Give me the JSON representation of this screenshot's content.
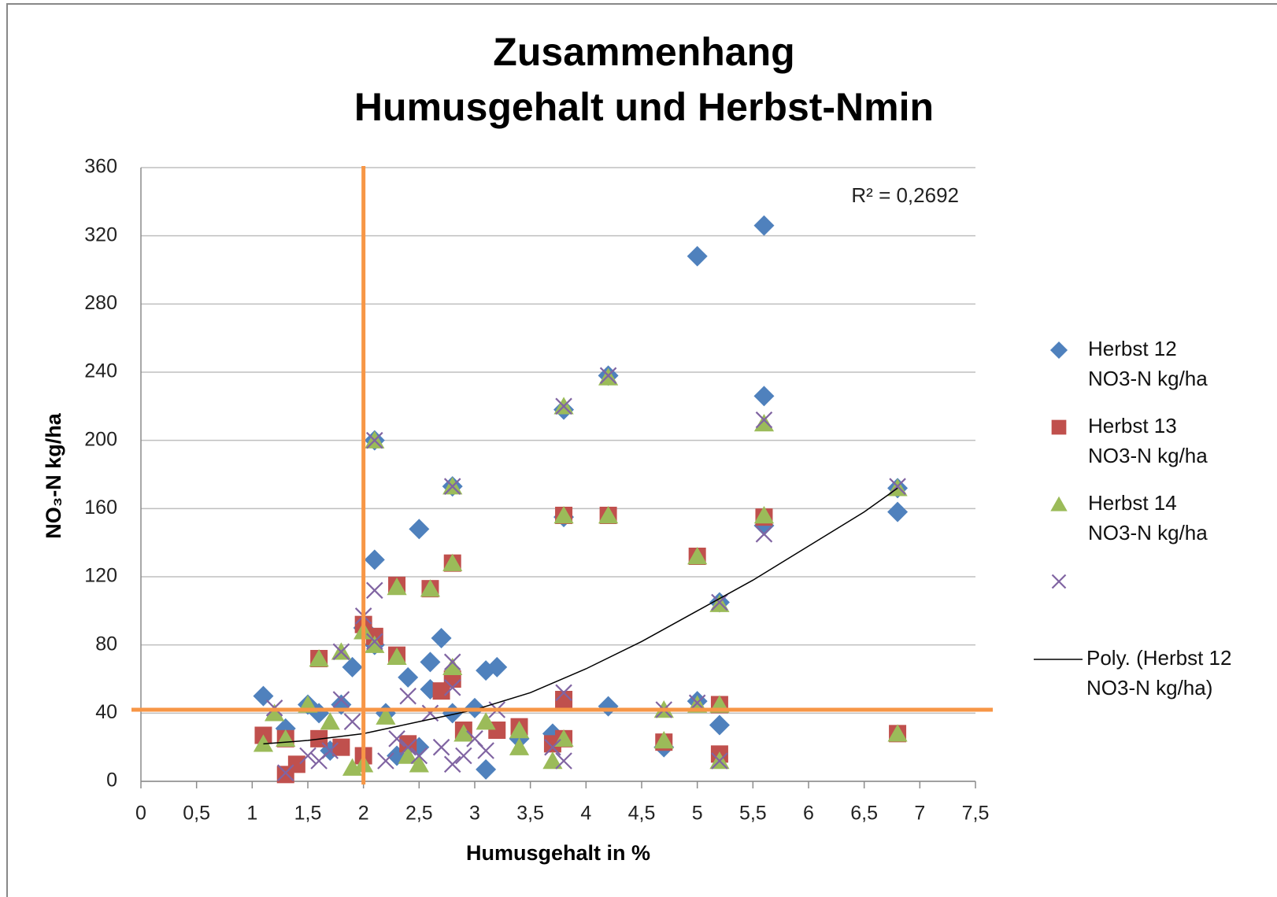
{
  "chart_data": {
    "type": "scatter",
    "title": [
      "Zusammenhang",
      "Humusgehalt und Herbst-Nmin"
    ],
    "x_label": "Humusgehalt in %",
    "y_label": "NO₃-N kg/ha",
    "annotation": "R² = 0,2692",
    "xlim": [
      0,
      7.5
    ],
    "ylim": [
      0,
      360
    ],
    "xticks": [
      0,
      {
        "value": 0.5,
        "label": "0,5"
      },
      1,
      {
        "value": 1.5,
        "label": "1,5"
      },
      2,
      {
        "value": 2.5,
        "label": "2,5"
      },
      3,
      {
        "value": 3.5,
        "label": "3,5"
      },
      4,
      {
        "value": 4.5,
        "label": "4,5"
      },
      5,
      {
        "value": 5.5,
        "label": "5,5"
      },
      6,
      {
        "value": 6.5,
        "label": "6,5"
      },
      7,
      {
        "value": 7.5,
        "label": "7,5"
      }
    ],
    "yticks": [
      0,
      40,
      80,
      120,
      160,
      200,
      240,
      280,
      320,
      360
    ],
    "grid": true,
    "legend": "right",
    "reference_lines": {
      "x": 2,
      "y": 42,
      "color": "#f79646"
    },
    "series": [
      {
        "name": "Herbst 12 NO3-N kg/ha",
        "color": "#4f81bd",
        "marker": "diamond",
        "x": [
          1.1,
          1.3,
          1.5,
          1.6,
          1.8,
          1.9,
          2.0,
          2.1,
          2.1,
          2.2,
          2.4,
          2.5,
          2.6,
          2.6,
          2.7,
          2.8,
          3.0,
          3.1,
          3.2,
          3.1,
          3.4,
          3.7,
          3.8,
          3.8,
          4.2,
          4.2,
          4.7,
          5.0,
          5.0,
          5.2,
          5.2,
          5.6,
          5.6,
          5.6,
          6.8,
          6.8,
          2.1,
          2.8,
          2.3,
          2.5,
          1.7
        ],
        "values": [
          50,
          31,
          45,
          40,
          45,
          67,
          90,
          130,
          80,
          40,
          61,
          148,
          70,
          54,
          84,
          40,
          43,
          65,
          67,
          7,
          25,
          28,
          155,
          218,
          238,
          44,
          20,
          308,
          47,
          105,
          33,
          326,
          226,
          150,
          158,
          172,
          200,
          173,
          15,
          20,
          18
        ]
      },
      {
        "name": "Herbst 13 NO3-N kg/ha",
        "color": "#c0504d",
        "marker": "square",
        "x": [
          1.1,
          1.3,
          1.3,
          1.4,
          1.6,
          1.6,
          1.8,
          2.0,
          2.1,
          2.3,
          2.3,
          2.6,
          2.7,
          2.8,
          2.8,
          2.9,
          3.2,
          3.4,
          3.7,
          3.8,
          3.8,
          3.8,
          4.2,
          4.7,
          5.0,
          5.2,
          5.2,
          5.6,
          6.8,
          2.4,
          2.0
        ],
        "values": [
          27,
          25,
          4,
          10,
          72,
          25,
          20,
          92,
          85,
          115,
          74,
          113,
          53,
          128,
          60,
          30,
          30,
          32,
          22,
          156,
          25,
          48,
          156,
          23,
          132,
          16,
          45,
          155,
          28,
          22,
          15
        ]
      },
      {
        "name": "Herbst 14 NO3-N kg/ha",
        "color": "#9bbb59",
        "marker": "triangle",
        "x": [
          1.1,
          1.2,
          1.3,
          1.5,
          1.6,
          1.7,
          1.8,
          1.9,
          2.0,
          2.1,
          2.1,
          2.2,
          2.3,
          2.3,
          2.5,
          2.6,
          2.8,
          2.8,
          2.8,
          2.9,
          3.1,
          3.4,
          3.4,
          3.7,
          3.8,
          3.8,
          3.8,
          4.2,
          4.2,
          4.7,
          4.7,
          5.0,
          5.0,
          5.2,
          5.2,
          5.2,
          5.6,
          5.6,
          6.8,
          6.8,
          2.0,
          2.4
        ],
        "values": [
          22,
          40,
          25,
          45,
          72,
          35,
          76,
          8,
          88,
          80,
          200,
          38,
          114,
          73,
          10,
          113,
          173,
          128,
          67,
          28,
          35,
          30,
          20,
          12,
          220,
          156,
          25,
          237,
          156,
          42,
          24,
          45,
          132,
          104,
          45,
          12,
          210,
          156,
          172,
          28,
          10,
          15
        ]
      },
      {
        "color": "#8064a2",
        "marker": "cross",
        "x": [
          1.2,
          1.3,
          1.5,
          1.6,
          1.7,
          1.8,
          1.8,
          1.9,
          2.0,
          2.1,
          2.1,
          2.1,
          2.2,
          2.3,
          2.4,
          2.4,
          2.5,
          2.6,
          2.7,
          2.8,
          2.8,
          2.8,
          2.8,
          2.9,
          3.0,
          3.1,
          3.2,
          3.7,
          3.8,
          3.8,
          3.8,
          4.2,
          4.7,
          5.0,
          5.2,
          5.2,
          5.6,
          5.6,
          6.8
        ],
        "values": [
          43,
          5,
          15,
          12,
          18,
          48,
          76,
          35,
          97,
          200,
          112,
          82,
          12,
          25,
          50,
          20,
          15,
          40,
          20,
          173,
          70,
          55,
          10,
          15,
          25,
          18,
          42,
          20,
          220,
          52,
          12,
          238,
          42,
          46,
          105,
          12,
          212,
          145,
          173
        ]
      }
    ],
    "trendline": {
      "name": "Poly. (Herbst 12 NO3-N kg/ha)",
      "color": "#000000",
      "x": [
        1.1,
        1.5,
        2,
        2.5,
        3,
        3.5,
        4,
        4.5,
        5,
        5.5,
        6,
        6.5,
        6.8
      ],
      "values": [
        22,
        24,
        28,
        35,
        42,
        52,
        66,
        82,
        100,
        118,
        138,
        158,
        172
      ]
    }
  }
}
